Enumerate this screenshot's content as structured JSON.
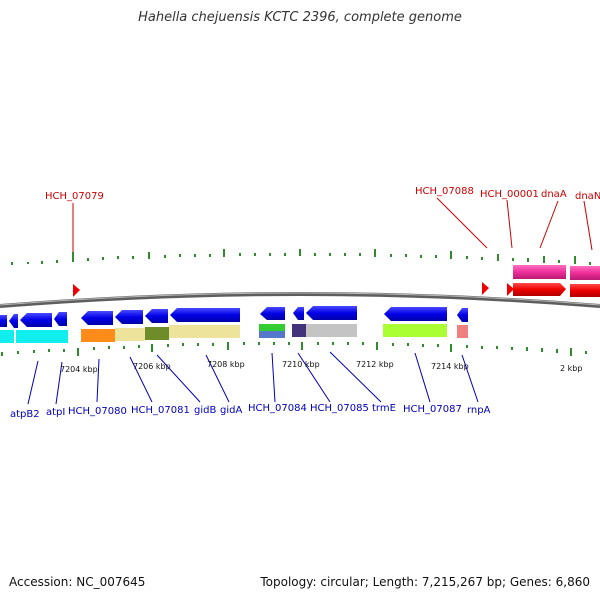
{
  "title": "Hahella chejuensis KCTC 2396, complete genome",
  "footer": {
    "accession": "Accession: NC_007645",
    "summary": "Topology: circular; Length: 7,215,267 bp; Genes: 6,860"
  },
  "colors": {
    "forward_gene": "#0000ee",
    "reverse_gene": "#ee0000",
    "forward_label": "#0000bb",
    "reverse_label": "#cc0000",
    "tick": "#2e8b2e",
    "backbone": "#777777",
    "pink_gene": "#ee2e9a"
  },
  "scale_labels": [
    "7204 kbp",
    "7206 kbp",
    "7208 kbp",
    "7210 kbp",
    "7212 kbp",
    "7214 kbp",
    "2 kbp"
  ],
  "top_labels": [
    "HCH_07079",
    "HCH_07088",
    "HCH_00001",
    "dnaA",
    "dnaN"
  ],
  "bottom_labels": [
    "atpB2",
    "atpI",
    "HCH_07080",
    "HCH_07081",
    "gidB",
    "gidA",
    "HCH_07084",
    "HCH_07085",
    "trmE",
    "HCH_07087",
    "rnpA"
  ]
}
